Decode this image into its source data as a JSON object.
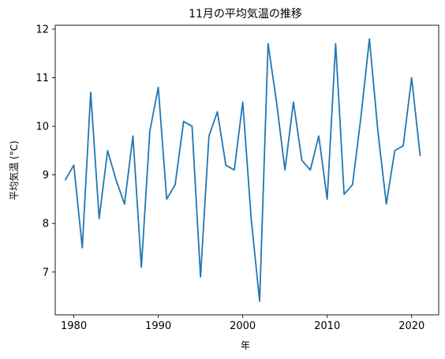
{
  "chart_data": {
    "type": "line",
    "title": "11月の平均気温の推移",
    "xlabel": "年",
    "ylabel": "平均気温 (°C)",
    "xlim": [
      1977.8,
      2023.2
    ],
    "ylim": [
      6.12,
      12.08
    ],
    "x_ticks": [
      1980,
      1990,
      2000,
      2010,
      2020
    ],
    "y_ticks": [
      7,
      8,
      9,
      10,
      11,
      12
    ],
    "grid": false,
    "legend": "none",
    "line_color": "#1f77b4",
    "series": [
      {
        "x": [
          1979,
          1980,
          1981,
          1982,
          1983,
          1984,
          1985,
          1986,
          1987,
          1988,
          1989,
          1990,
          1991,
          1992,
          1993,
          1994,
          1995,
          1996,
          1997,
          1998,
          1999,
          2000,
          2001,
          2002,
          2003,
          2004,
          2005,
          2006,
          2007,
          2008,
          2009,
          2010,
          2011,
          2012,
          2013,
          2014,
          2015,
          2016,
          2017,
          2018,
          2019,
          2020,
          2021
        ],
        "values": [
          8.9,
          9.2,
          7.5,
          10.7,
          8.1,
          9.5,
          8.9,
          8.4,
          9.8,
          7.1,
          9.9,
          10.8,
          8.5,
          8.8,
          10.1,
          10.0,
          6.9,
          9.8,
          10.3,
          9.2,
          9.1,
          10.5,
          8.1,
          6.4,
          11.7,
          10.5,
          9.1,
          10.5,
          9.3,
          9.1,
          9.8,
          8.5,
          11.7,
          8.6,
          8.8,
          10.2,
          11.8,
          9.9,
          8.4,
          9.5,
          9.6,
          11.0,
          9.4
        ]
      }
    ]
  }
}
